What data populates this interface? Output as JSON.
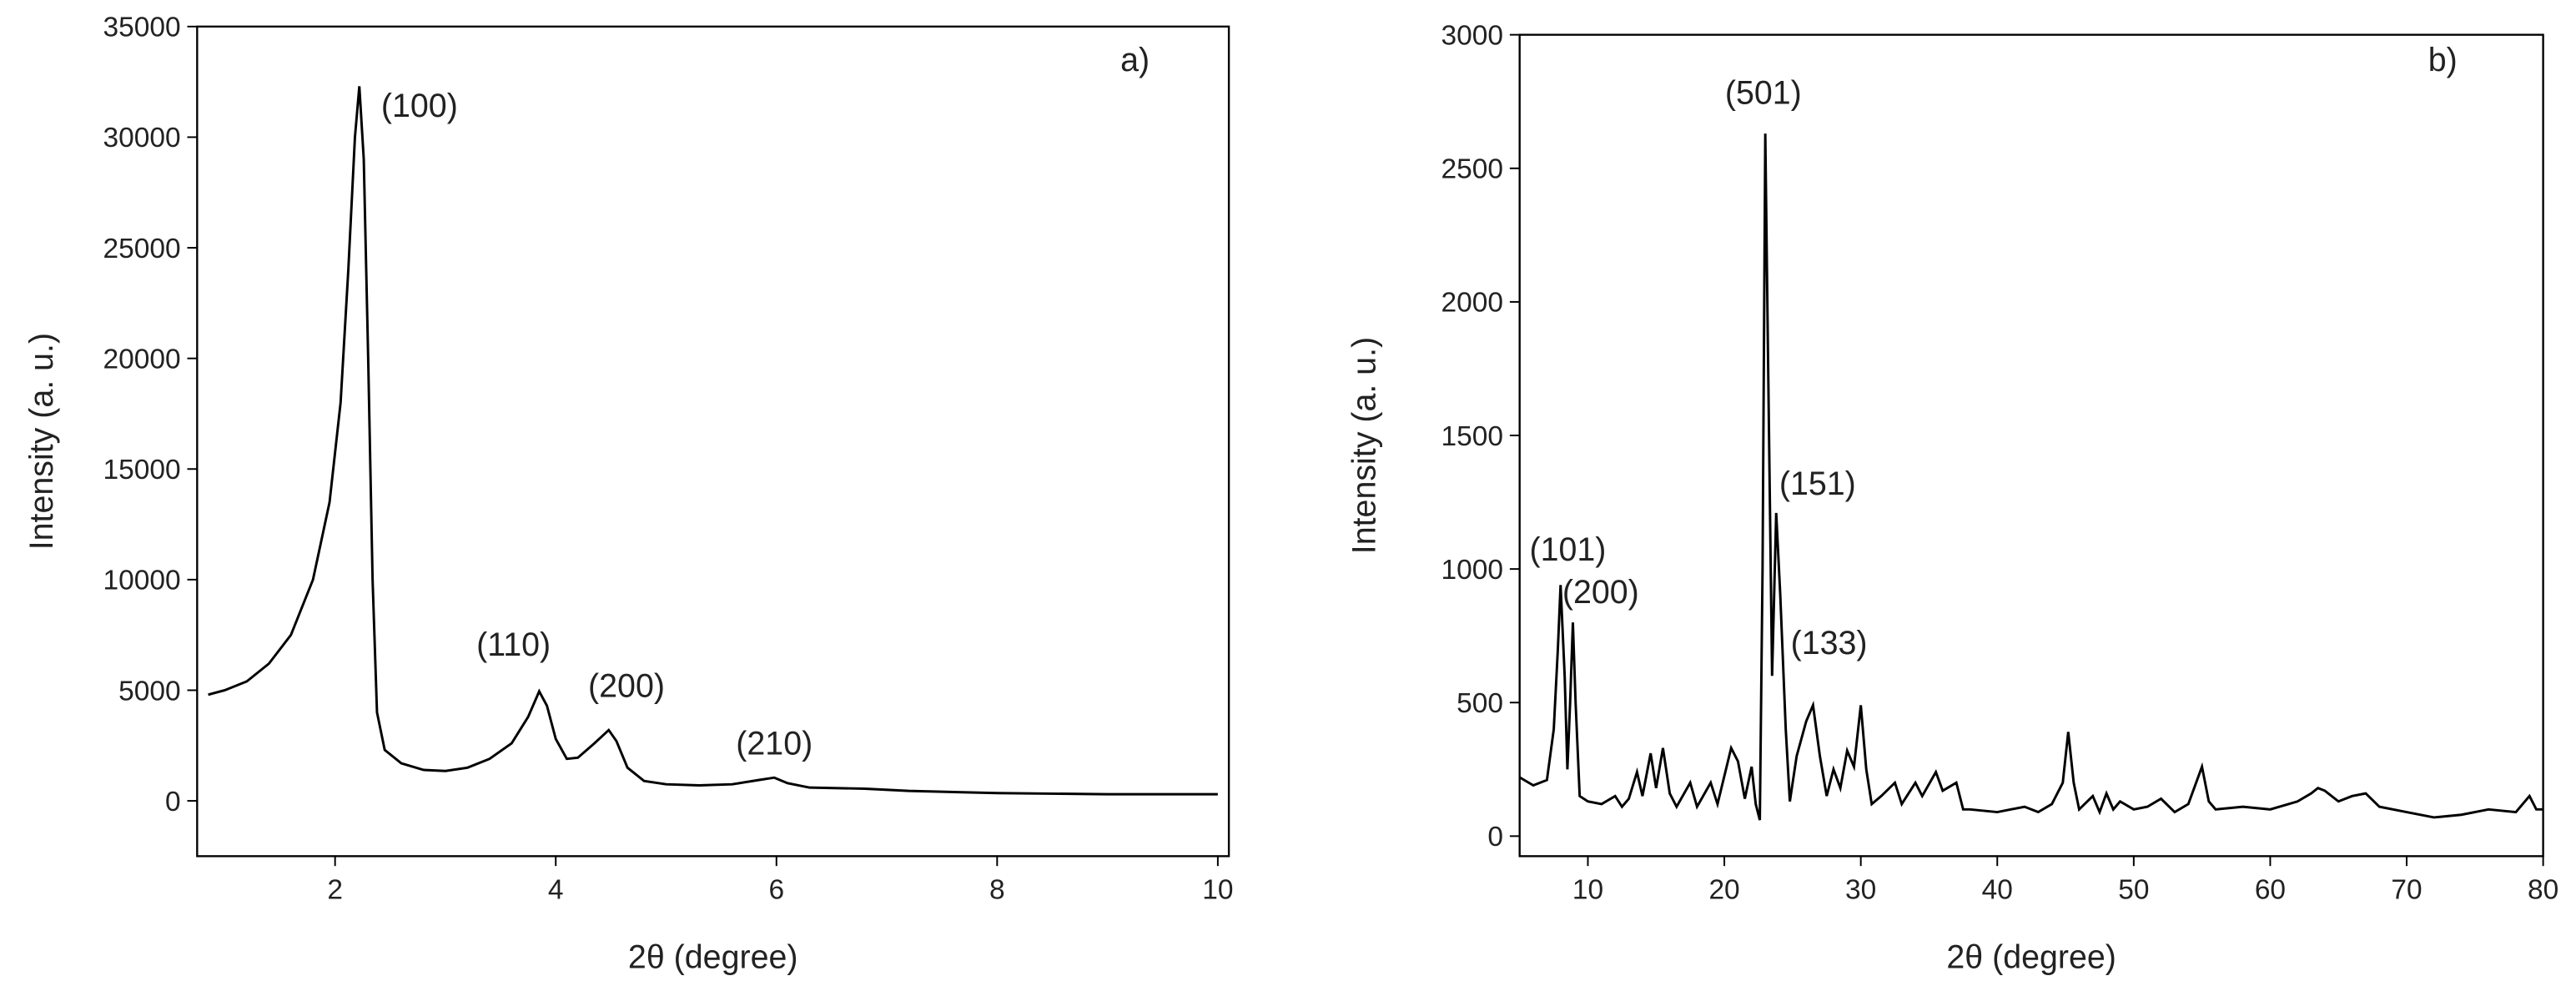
{
  "chart_data": [
    {
      "type": "line",
      "x_label": "2θ (degree)",
      "y_label": "Intensity (a. u.)",
      "xlim": [
        0.75,
        10.1
      ],
      "ylim": [
        -2500,
        35000
      ],
      "xticks": [
        2,
        4,
        6,
        8,
        10
      ],
      "yticks": [
        0,
        5000,
        10000,
        15000,
        20000,
        25000,
        30000,
        35000
      ],
      "annotations": [
        "a)",
        "(100)",
        "(110)",
        "(200)",
        "(210)"
      ],
      "series": [
        {
          "color": "#000000",
          "x": [
            0.85,
            1.0,
            1.2,
            1.4,
            1.6,
            1.8,
            1.95,
            2.05,
            2.12,
            2.18,
            2.22,
            2.26,
            2.3,
            2.34,
            2.38,
            2.45,
            2.6,
            2.8,
            3.0,
            3.2,
            3.4,
            3.6,
            3.75,
            3.85,
            3.92,
            4.0,
            4.1,
            4.2,
            4.35,
            4.48,
            4.55,
            4.65,
            4.8,
            5.0,
            5.3,
            5.6,
            5.85,
            5.98,
            6.1,
            6.3,
            6.8,
            7.2,
            8.0,
            9.0,
            10.0
          ],
          "values": [
            4800,
            5000,
            5400,
            6200,
            7500,
            10000,
            13500,
            18000,
            24000,
            30000,
            32300,
            29000,
            20000,
            10000,
            4000,
            2300,
            1700,
            1400,
            1350,
            1500,
            1900,
            2600,
            3800,
            4950,
            4300,
            2800,
            1900,
            1950,
            2600,
            3200,
            2700,
            1500,
            900,
            750,
            700,
            750,
            950,
            1050,
            800,
            600,
            550,
            450,
            350,
            300,
            300
          ]
        }
      ]
    },
    {
      "type": "line",
      "x_label": "2θ (degree)",
      "y_label": "Intensity (a. u.)",
      "xlim": [
        5,
        80
      ],
      "ylim": [
        -75,
        3000
      ],
      "xticks": [
        10,
        20,
        30,
        40,
        50,
        60,
        70,
        80
      ],
      "yticks": [
        0,
        500,
        1000,
        1500,
        2000,
        2500,
        3000
      ],
      "annotations": [
        "b)",
        "(501)",
        "(151)",
        "(101)",
        "(200)",
        "(133)"
      ],
      "series": [
        {
          "color": "#000000",
          "x": [
            5,
            6,
            7,
            7.5,
            7.8,
            8.0,
            8.3,
            8.5,
            8.7,
            8.9,
            9.1,
            9.4,
            10,
            11,
            12,
            12.5,
            13,
            13.6,
            14,
            14.6,
            15,
            15.5,
            16,
            16.5,
            17.5,
            18,
            19,
            19.5,
            20.5,
            21,
            21.5,
            22,
            22.3,
            22.6,
            22.8,
            23.0,
            23.2,
            23.5,
            23.8,
            24.1,
            24.5,
            24.8,
            25.3,
            26,
            26.5,
            27,
            27.5,
            28,
            28.5,
            29,
            29.5,
            30,
            30.4,
            30.8,
            31.5,
            32.5,
            33,
            34,
            34.5,
            35.5,
            36,
            37,
            37.5,
            38,
            40,
            42,
            43,
            44,
            44.8,
            45.2,
            45.6,
            46,
            47,
            47.5,
            48,
            48.5,
            49,
            50,
            51,
            52,
            53,
            54,
            55,
            55.5,
            56,
            58,
            60,
            62,
            63,
            63.5,
            64,
            65,
            66,
            67,
            68,
            70,
            72,
            74,
            76,
            78,
            79,
            79.5,
            80
          ],
          "values": [
            220,
            190,
            210,
            400,
            700,
            940,
            600,
            250,
            500,
            800,
            500,
            150,
            130,
            120,
            150,
            110,
            140,
            240,
            150,
            310,
            180,
            330,
            160,
            110,
            200,
            110,
            200,
            120,
            330,
            280,
            140,
            260,
            120,
            60,
            1000,
            2630,
            1800,
            600,
            1210,
            900,
            400,
            130,
            300,
            430,
            490,
            300,
            150,
            250,
            180,
            320,
            260,
            490,
            250,
            120,
            150,
            200,
            120,
            200,
            150,
            240,
            170,
            200,
            100,
            100,
            90,
            110,
            90,
            120,
            200,
            390,
            200,
            100,
            150,
            90,
            160,
            100,
            130,
            100,
            110,
            140,
            90,
            120,
            260,
            130,
            100,
            110,
            100,
            130,
            160,
            180,
            170,
            130,
            150,
            160,
            110,
            90,
            70,
            80,
            100,
            90,
            150,
            100,
            100
          ]
        }
      ]
    }
  ]
}
